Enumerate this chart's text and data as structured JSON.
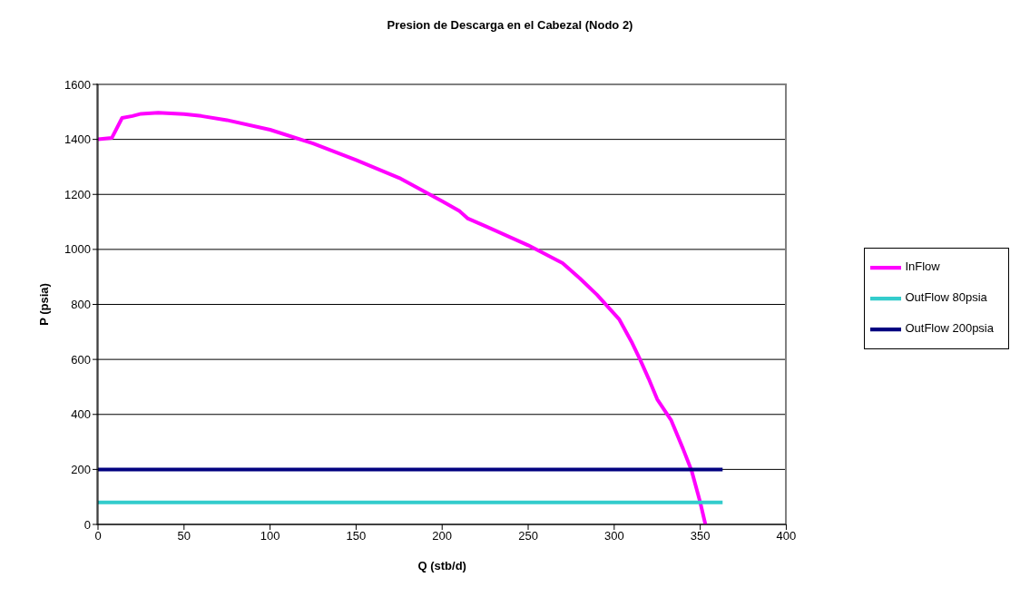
{
  "chart_data": {
    "type": "line",
    "title": "Presion de Descarga en el Cabezal (Nodo 2)",
    "xlabel": "Q (stb/d)",
    "ylabel": "P (psia)",
    "xlim": [
      0,
      400
    ],
    "xticks": [
      0,
      50,
      100,
      150,
      200,
      250,
      300,
      350,
      400
    ],
    "ylim": [
      0,
      1600
    ],
    "yticks": [
      0,
      200,
      400,
      600,
      800,
      1000,
      1200,
      1400,
      1600
    ],
    "grid": "y",
    "legend": "right",
    "marker": "none",
    "series": [
      {
        "name": "InFlow",
        "color": "#ff00ff",
        "x": [
          0,
          8,
          14,
          20,
          25,
          35,
          50,
          60,
          75,
          100,
          125,
          150,
          175,
          200,
          210,
          215,
          225,
          250,
          270,
          280,
          290,
          303,
          310,
          315,
          320,
          325,
          333,
          340,
          345,
          350,
          353
        ],
        "values": [
          1400,
          1405,
          1478,
          1485,
          1493,
          1497,
          1492,
          1485,
          1470,
          1435,
          1385,
          1325,
          1260,
          1175,
          1140,
          1112,
          1085,
          1015,
          950,
          895,
          835,
          745,
          665,
          600,
          530,
          455,
          380,
          275,
          195,
          80,
          0
        ]
      },
      {
        "name": "OutFlow 80psia",
        "color": "#33cccc",
        "x": [
          0,
          363
        ],
        "values": [
          80,
          80
        ]
      },
      {
        "name": "OutFlow 200psia",
        "color": "#000080",
        "x": [
          0,
          363
        ],
        "values": [
          200,
          200
        ]
      }
    ]
  }
}
